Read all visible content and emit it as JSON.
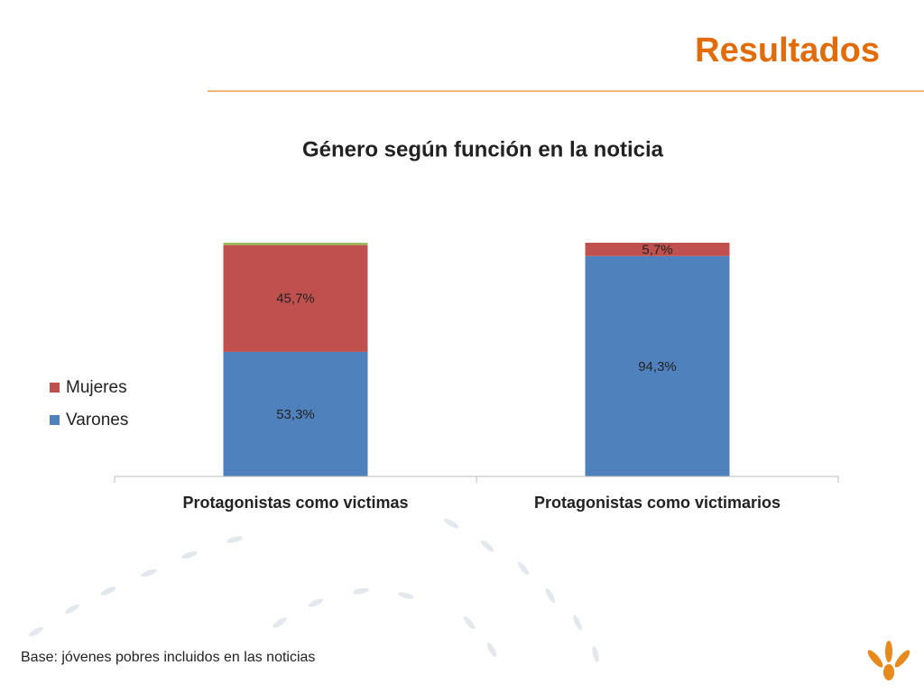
{
  "slide_title": "Resultados",
  "footnote": "Base: jóvenes pobres incluidos  en las noticias",
  "chart_data": {
    "type": "stacked_bar",
    "title": "Género según función en la noticia",
    "categories": [
      "Protagonistas como victimas",
      "Protagonistas como victimarios"
    ],
    "series": [
      {
        "name": "Varones",
        "color": "#4f81bd",
        "values": [
          53.3,
          94.3
        ],
        "value_labels": [
          "53,3%",
          "94,3%"
        ]
      },
      {
        "name": "Mujeres",
        "color": "#c0504d",
        "values": [
          45.7,
          5.7
        ],
        "value_labels": [
          "45,7%",
          "5,7%"
        ]
      },
      {
        "color": "#9bbb59",
        "values": [
          1.0,
          null
        ]
      }
    ],
    "ylim": [
      0,
      100
    ],
    "legend": "left"
  }
}
